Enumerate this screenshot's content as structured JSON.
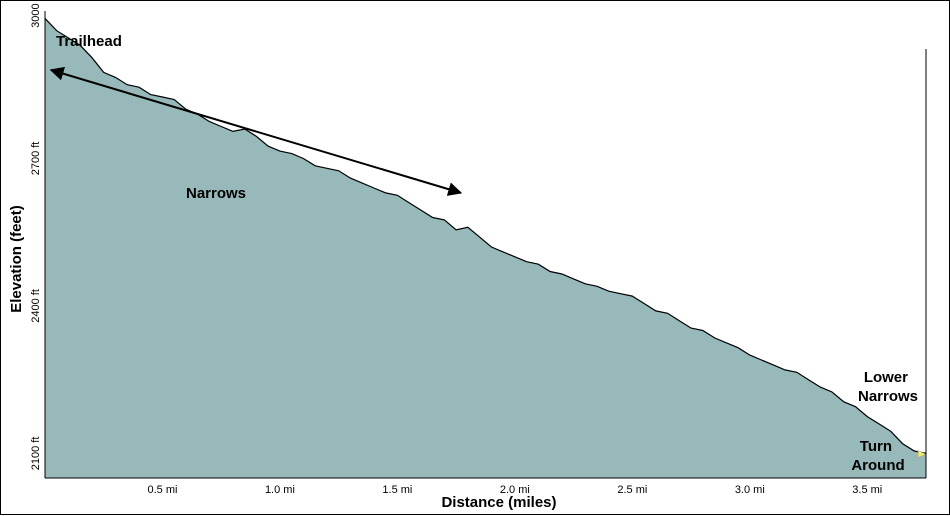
{
  "chart_data": {
    "type": "area",
    "xlabel": "Distance (miles)",
    "ylabel": "Elevation (feet)",
    "xlim": [
      0,
      3.75
    ],
    "ylim": [
      2050,
      3000
    ],
    "x_ticks": [
      0.5,
      1.0,
      1.5,
      2.0,
      2.5,
      3.0,
      3.5
    ],
    "x_tick_labels": [
      "0.5 mi",
      "1.0 mi",
      "1.5 mi",
      "2.0 mi",
      "2.5 mi",
      "3.0 mi",
      "3.5 mi"
    ],
    "y_ticks": [
      2100,
      2400,
      2700,
      3000
    ],
    "y_tick_labels": [
      "2100 ft",
      "2400 ft",
      "2700 ft",
      "3000 ft"
    ],
    "grid": false,
    "fill_color": "#98b9b9",
    "line_color": "#000000",
    "series": [
      {
        "x": [
          0.0,
          0.05,
          0.1,
          0.15,
          0.2,
          0.25,
          0.3,
          0.35,
          0.4,
          0.45,
          0.5,
          0.55,
          0.6,
          0.65,
          0.7,
          0.75,
          0.8,
          0.85,
          0.9,
          0.95,
          1.0,
          1.05,
          1.1,
          1.15,
          1.2,
          1.25,
          1.3,
          1.35,
          1.4,
          1.45,
          1.5,
          1.55,
          1.6,
          1.65,
          1.7,
          1.75,
          1.8,
          1.85,
          1.9,
          1.95,
          2.0,
          2.05,
          2.1,
          2.15,
          2.2,
          2.25,
          2.3,
          2.35,
          2.4,
          2.45,
          2.5,
          2.55,
          2.6,
          2.65,
          2.7,
          2.75,
          2.8,
          2.85,
          2.9,
          2.95,
          3.0,
          3.05,
          3.1,
          3.15,
          3.2,
          3.25,
          3.3,
          3.35,
          3.4,
          3.45,
          3.5,
          3.55,
          3.6,
          3.65,
          3.7,
          3.75
        ],
        "y": [
          2985,
          2960,
          2945,
          2930,
          2905,
          2875,
          2865,
          2850,
          2845,
          2830,
          2825,
          2820,
          2800,
          2790,
          2775,
          2765,
          2755,
          2760,
          2745,
          2725,
          2715,
          2710,
          2700,
          2685,
          2680,
          2675,
          2660,
          2650,
          2640,
          2630,
          2625,
          2610,
          2595,
          2580,
          2575,
          2555,
          2560,
          2540,
          2520,
          2510,
          2500,
          2490,
          2485,
          2470,
          2465,
          2455,
          2445,
          2440,
          2430,
          2425,
          2420,
          2405,
          2390,
          2385,
          2370,
          2355,
          2350,
          2335,
          2325,
          2315,
          2300,
          2290,
          2280,
          2270,
          2265,
          2250,
          2235,
          2225,
          2205,
          2195,
          2175,
          2160,
          2145,
          2120,
          2105,
          2100
        ]
      }
    ],
    "annotations": [
      {
        "text": "Trailhead"
      },
      {
        "text": "Narrows"
      },
      {
        "text": "Lower Narrows"
      },
      {
        "text": "Turn Around"
      }
    ],
    "arrow": {
      "from": [
        0.0,
        2880
      ],
      "to": [
        1.77,
        2630
      ]
    }
  }
}
